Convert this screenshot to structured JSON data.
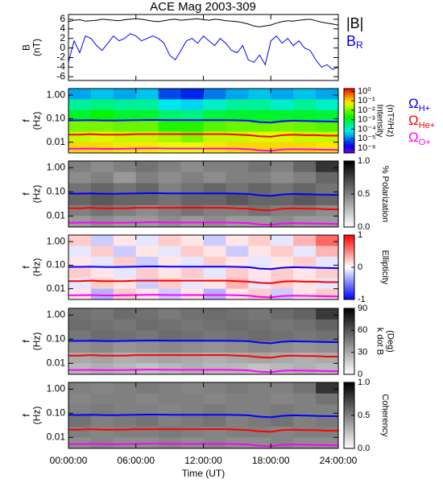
{
  "chart_data": [
    {
      "type": "line",
      "title": "ACE Mag 2003-309",
      "ylabel": [
        "B",
        "(nT)"
      ],
      "xlim": [
        0,
        24
      ],
      "ylim": [
        -6.8,
        7
      ],
      "yticks": [
        6,
        4,
        2,
        0,
        -2,
        -4,
        -6
      ],
      "x": [
        0,
        0.5,
        1,
        1.5,
        2,
        2.5,
        3,
        3.5,
        4,
        4.5,
        5,
        5.5,
        6,
        6.5,
        7,
        7.5,
        8,
        8.5,
        9,
        9.5,
        10,
        10.5,
        11,
        11.5,
        12,
        12.5,
        13,
        13.5,
        14,
        14.5,
        15,
        15.5,
        16,
        16.5,
        17,
        17.5,
        18,
        18.5,
        19,
        19.5,
        20,
        20.5,
        21,
        21.5,
        22,
        22.5,
        23,
        23.5,
        24
      ],
      "series": [
        {
          "name": "|B|",
          "color": "#000000",
          "values": [
            5.5,
            5.8,
            5.9,
            5.6,
            5.7,
            5.8,
            6.0,
            5.9,
            5.8,
            5.7,
            5.9,
            6.0,
            6.1,
            6.0,
            5.8,
            5.6,
            5.5,
            5.7,
            5.9,
            6.0,
            5.8,
            5.9,
            6.0,
            6.1,
            5.9,
            5.8,
            6.0,
            5.9,
            5.7,
            5.6,
            5.5,
            5.3,
            5.0,
            4.6,
            4.4,
            4.6,
            4.8,
            5.2,
            5.5,
            5.7,
            5.6,
            5.8,
            5.9,
            6.0,
            5.7,
            5.4,
            5.2,
            5.0,
            4.8
          ]
        },
        {
          "name": "B",
          "subscript": "R",
          "color": "#0000ff",
          "values": [
            -3.0,
            1.5,
            -1.0,
            2.5,
            2.0,
            0.5,
            -0.5,
            1.0,
            2.5,
            1.5,
            2.0,
            3.0,
            2.5,
            1.5,
            2.0,
            2.5,
            2.0,
            1.0,
            -1.5,
            -2.5,
            -0.5,
            1.5,
            2.0,
            1.0,
            2.5,
            1.5,
            0.5,
            2.0,
            1.0,
            -0.5,
            -1.0,
            0.5,
            -2.5,
            -3.0,
            -1.5,
            -3.5,
            1.5,
            2.5,
            1.0,
            2.0,
            0.5,
            1.5,
            0.0,
            -0.5,
            -2.5,
            -4.0,
            -3.5,
            -4.5,
            -4.0
          ]
        }
      ]
    },
    {
      "type": "heatmap",
      "ylabel": [
        "f",
        "(Hz)"
      ],
      "log_y": true,
      "xlim": [
        0,
        24
      ],
      "ylim": [
        0.0035,
        1.9
      ],
      "yticks": [
        {
          "value": 1,
          "label": "1.00"
        },
        {
          "value": 0.1,
          "label": "0.10"
        },
        {
          "value": 0.01,
          "label": "0.01"
        }
      ],
      "x_bins": [
        0,
        2,
        4,
        6,
        8,
        10,
        12,
        14,
        16,
        18,
        20,
        22,
        24
      ],
      "y_bins": [
        1.9,
        0.66,
        0.23,
        0.08,
        0.028,
        0.01,
        0.0035
      ],
      "colormap": "rainbow",
      "colorbar": {
        "label": [
          "Intensity",
          "(nT²/Hz)"
        ],
        "log": true,
        "lim": [
          3e-07,
          2
        ],
        "ticks": [
          {
            "value": 1,
            "label": "10⁰"
          },
          {
            "value": 0.1,
            "label": "10⁻¹"
          },
          {
            "value": 0.01,
            "label": "10⁻²"
          },
          {
            "value": 0.001,
            "label": "10⁻³"
          },
          {
            "value": 0.0001,
            "label": "10⁻⁴"
          },
          {
            "value": 1e-05,
            "label": "10⁻⁵"
          },
          {
            "value": 1e-06,
            "label": "10⁻⁶"
          }
        ]
      },
      "z": [
        [
          2e-05,
          3e-05,
          2e-05,
          3e-05,
          5e-06,
          3e-06,
          1e-05,
          2e-05,
          3e-05,
          2e-05,
          3e-05,
          2e-05
        ],
        [
          0.0002,
          0.0003,
          0.0002,
          0.0002,
          5e-05,
          4e-05,
          0.0001,
          0.0002,
          0.0002,
          0.0001,
          0.0002,
          0.0001
        ],
        [
          0.001,
          0.002,
          0.001,
          0.001,
          0.0004,
          0.0003,
          0.0008,
          0.001,
          0.001,
          0.001,
          0.001,
          0.0008
        ],
        [
          0.01,
          0.01,
          0.008,
          0.008,
          0.003,
          0.003,
          0.006,
          0.008,
          0.008,
          0.01,
          0.008,
          0.006
        ],
        [
          0.03,
          0.04,
          0.03,
          0.03,
          0.02,
          0.01,
          0.03,
          0.03,
          0.04,
          0.04,
          0.03,
          0.03
        ],
        [
          0.1,
          0.1,
          0.08,
          0.08,
          0.05,
          0.05,
          0.08,
          0.1,
          0.1,
          0.1,
          0.1,
          0.08
        ]
      ],
      "x": [
        0,
        1,
        2,
        3,
        4,
        5,
        6,
        7,
        8,
        9,
        10,
        11,
        12,
        13,
        14,
        15,
        16,
        17,
        18,
        19,
        20,
        21,
        22,
        23,
        24
      ],
      "series": [
        {
          "name": "Ω",
          "subscript": "H+",
          "color": "#0000ff",
          "values": [
            0.085,
            0.085,
            0.087,
            0.084,
            0.083,
            0.085,
            0.087,
            0.088,
            0.088,
            0.087,
            0.086,
            0.086,
            0.087,
            0.087,
            0.086,
            0.085,
            0.082,
            0.072,
            0.068,
            0.078,
            0.082,
            0.08,
            0.078,
            0.076,
            0.075
          ]
        },
        {
          "name": "Ω",
          "subscript": "He+",
          "color": "#ff0000",
          "values": [
            0.021,
            0.021,
            0.022,
            0.021,
            0.021,
            0.021,
            0.022,
            0.022,
            0.022,
            0.022,
            0.022,
            0.022,
            0.022,
            0.022,
            0.022,
            0.021,
            0.02,
            0.018,
            0.017,
            0.02,
            0.021,
            0.02,
            0.02,
            0.019,
            0.019
          ]
        },
        {
          "name": "Ω",
          "subscript": "O+",
          "color": "#ff00ff",
          "values": [
            0.0053,
            0.0053,
            0.0054,
            0.0052,
            0.0052,
            0.0053,
            0.0054,
            0.0055,
            0.0055,
            0.0054,
            0.0054,
            0.0054,
            0.0054,
            0.0054,
            0.0054,
            0.0053,
            0.0051,
            0.0045,
            0.0043,
            0.0049,
            0.0051,
            0.005,
            0.0049,
            0.0048,
            0.0047
          ]
        }
      ]
    },
    {
      "type": "heatmap",
      "ylabel": [
        "f",
        "(Hz)"
      ],
      "log_y": true,
      "xlim": [
        0,
        24
      ],
      "ylim": [
        0.0035,
        1.9
      ],
      "yticks": [
        {
          "value": 1,
          "label": "1.00"
        },
        {
          "value": 0.1,
          "label": "0.10"
        },
        {
          "value": 0.01,
          "label": "0.01"
        }
      ],
      "colormap": "gray",
      "colorbar": {
        "label": [
          "% Polarization"
        ],
        "lim": [
          0,
          1
        ],
        "ticks": [
          {
            "value": 1,
            "label": "1.0"
          },
          {
            "value": 0.5,
            "label": "0.5"
          },
          {
            "value": 0,
            "label": "0.0"
          }
        ]
      },
      "z": [
        [
          0.5,
          0.45,
          0.5,
          0.55,
          0.5,
          0.45,
          0.5,
          0.5,
          0.55,
          0.5,
          0.6,
          0.8
        ],
        [
          0.45,
          0.5,
          0.4,
          0.5,
          0.45,
          0.5,
          0.45,
          0.5,
          0.5,
          0.45,
          0.5,
          0.6
        ],
        [
          0.55,
          0.6,
          0.55,
          0.6,
          0.5,
          0.55,
          0.6,
          0.55,
          0.6,
          0.55,
          0.6,
          0.55
        ],
        [
          0.6,
          0.65,
          0.6,
          0.6,
          0.55,
          0.6,
          0.6,
          0.65,
          0.6,
          0.6,
          0.65,
          0.6
        ],
        [
          0.5,
          0.55,
          0.5,
          0.45,
          0.5,
          0.55,
          0.5,
          0.5,
          0.55,
          0.5,
          0.5,
          0.45
        ],
        [
          0.4,
          0.45,
          0.4,
          0.4,
          0.45,
          0.4,
          0.45,
          0.4,
          0.4,
          0.45,
          0.4,
          0.4
        ]
      ]
    },
    {
      "type": "heatmap",
      "ylabel": [
        "f",
        "(Hz)"
      ],
      "log_y": true,
      "xlim": [
        0,
        24
      ],
      "ylim": [
        0.0035,
        1.9
      ],
      "yticks": [
        {
          "value": 1,
          "label": "1.00"
        },
        {
          "value": 0.1,
          "label": "0.10"
        },
        {
          "value": 0.01,
          "label": "0.01"
        }
      ],
      "colormap": "bwr",
      "colorbar": {
        "label": [
          "Ellipticity"
        ],
        "lim": [
          -1,
          1
        ],
        "ticks": [
          1,
          0,
          -1
        ]
      },
      "z": [
        [
          0.2,
          -0.2,
          0.1,
          -0.1,
          0.2,
          0.1,
          -0.2,
          0.1,
          0.2,
          -0.1,
          0.3,
          0.6
        ],
        [
          -0.1,
          0.2,
          -0.2,
          0.1,
          -0.1,
          0.2,
          0.1,
          -0.2,
          0.1,
          0.2,
          -0.1,
          0.3
        ],
        [
          0.1,
          -0.1,
          0.2,
          -0.2,
          0.1,
          -0.1,
          0.2,
          0.1,
          -0.1,
          0.1,
          0.2,
          -0.1
        ],
        [
          0.2,
          0.1,
          -0.1,
          0.2,
          0.1,
          0.2,
          -0.1,
          0.2,
          0.1,
          0.2,
          0.1,
          0.2
        ],
        [
          -0.1,
          0.2,
          0.1,
          -0.2,
          0.2,
          -0.1,
          0.1,
          0.3,
          -0.1,
          0.2,
          0.1,
          -0.1
        ],
        [
          0.1,
          -0.3,
          0.2,
          0.1,
          -0.2,
          0.1,
          -0.3,
          0.1,
          0.2,
          -0.2,
          0.1,
          0.2
        ]
      ]
    },
    {
      "type": "heatmap",
      "ylabel": [
        "f",
        "(Hz)"
      ],
      "log_y": true,
      "xlim": [
        0,
        24
      ],
      "ylim": [
        0.0035,
        1.9
      ],
      "yticks": [
        {
          "value": 1,
          "label": "1.00"
        },
        {
          "value": 0.1,
          "label": "0.10"
        },
        {
          "value": 0.01,
          "label": "0.01"
        }
      ],
      "colormap": "gray",
      "colorbar": {
        "label": [
          "k dot B",
          "(Deg)"
        ],
        "lim": [
          0,
          90
        ],
        "ticks": [
          90,
          60,
          30,
          0
        ]
      },
      "z": [
        [
          50,
          48,
          52,
          50,
          47,
          50,
          52,
          50,
          48,
          52,
          55,
          70
        ],
        [
          52,
          50,
          48,
          52,
          50,
          48,
          50,
          52,
          50,
          48,
          50,
          55
        ],
        [
          48,
          52,
          50,
          48,
          52,
          50,
          48,
          50,
          52,
          50,
          48,
          50
        ],
        [
          40,
          42,
          38,
          40,
          42,
          40,
          38,
          40,
          42,
          40,
          38,
          40
        ],
        [
          30,
          32,
          28,
          30,
          32,
          30,
          28,
          30,
          32,
          30,
          28,
          30
        ],
        [
          25,
          28,
          25,
          22,
          25,
          28,
          25,
          25,
          22,
          25,
          28,
          25
        ]
      ]
    },
    {
      "type": "heatmap",
      "ylabel": [
        "f",
        "(Hz)"
      ],
      "log_y": true,
      "xlim": [
        0,
        24
      ],
      "ylim": [
        0.0035,
        1.9
      ],
      "yticks": [
        {
          "value": 1,
          "label": "1.00"
        },
        {
          "value": 0.1,
          "label": "0.10"
        },
        {
          "value": 0.01,
          "label": "0.01"
        }
      ],
      "colormap": "gray",
      "colorbar": {
        "label": [
          "Coherency"
        ],
        "lim": [
          0,
          1
        ],
        "ticks": [
          {
            "value": 1,
            "label": "1.0"
          },
          {
            "value": 0.5,
            "label": "0.5"
          },
          {
            "value": 0,
            "label": "0.0"
          }
        ]
      },
      "z": [
        [
          0.5,
          0.48,
          0.5,
          0.52,
          0.5,
          0.48,
          0.5,
          0.52,
          0.5,
          0.5,
          0.55,
          0.8
        ],
        [
          0.48,
          0.5,
          0.5,
          0.48,
          0.5,
          0.5,
          0.48,
          0.5,
          0.5,
          0.48,
          0.5,
          0.55
        ],
        [
          0.5,
          0.52,
          0.5,
          0.5,
          0.48,
          0.5,
          0.52,
          0.5,
          0.5,
          0.52,
          0.5,
          0.5
        ],
        [
          0.55,
          0.5,
          0.52,
          0.55,
          0.5,
          0.52,
          0.55,
          0.5,
          0.52,
          0.55,
          0.5,
          0.52
        ],
        [
          0.5,
          0.48,
          0.5,
          0.5,
          0.52,
          0.5,
          0.48,
          0.5,
          0.5,
          0.48,
          0.5,
          0.5
        ],
        [
          0.45,
          0.48,
          0.45,
          0.45,
          0.48,
          0.45,
          0.48,
          0.45,
          0.45,
          0.48,
          0.45,
          0.45
        ]
      ],
      "xlabel": "Time (UT)",
      "xticks": [
        {
          "value": 0,
          "label": "00:00:00"
        },
        {
          "value": 6,
          "label": "06:00:00"
        },
        {
          "value": 12,
          "label": "12:00:00"
        },
        {
          "value": 18,
          "label": "18:00:00"
        },
        {
          "value": 24,
          "label": "24:00:00"
        }
      ]
    }
  ]
}
